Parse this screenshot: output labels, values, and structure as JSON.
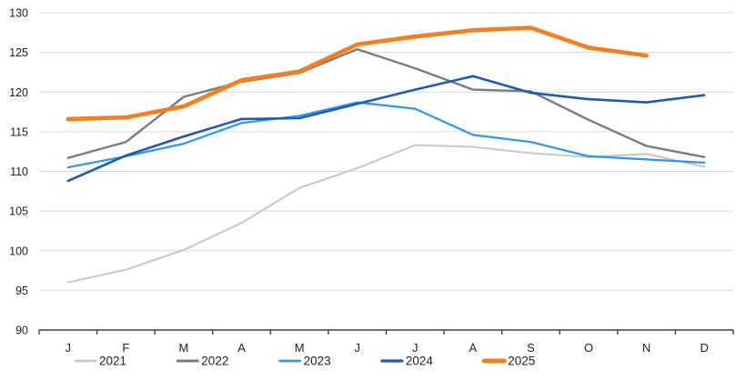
{
  "chart_data": {
    "type": "line",
    "title": "",
    "xlabel": "",
    "ylabel": "",
    "x_categories": [
      "J",
      "F",
      "M",
      "A",
      "M",
      "J",
      "J",
      "A",
      "S",
      "O",
      "N",
      "D"
    ],
    "y_ticks": [
      90,
      95,
      100,
      105,
      110,
      115,
      120,
      125,
      130
    ],
    "ylim": [
      90,
      130
    ],
    "grid": "horizontal-only",
    "legend_position": "bottom",
    "background_color": "#ffffff",
    "gridline_color": "#d9d9d9",
    "axis_line_color": "#404040",
    "series": [
      {
        "name": "2021",
        "color": "#c9c9c9",
        "stroke_width": 2.1,
        "values": [
          96.0,
          97.6,
          100.1,
          103.5,
          107.9,
          110.4,
          113.3,
          113.1,
          112.3,
          111.8,
          112.2,
          110.6
        ]
      },
      {
        "name": "2022",
        "color": "#7c7c7c",
        "stroke_width": 2.4,
        "values": [
          111.7,
          113.7,
          119.4,
          121.3,
          122.4,
          125.4,
          123.0,
          120.3,
          120.1,
          116.5,
          113.2,
          111.8
        ]
      },
      {
        "name": "2023",
        "color": "#2e96f0",
        "stroke_width": 2.2,
        "values": [
          110.5,
          111.9,
          113.5,
          116.1,
          117.0,
          118.7,
          117.9,
          114.6,
          113.7,
          111.9,
          111.5,
          111.1
        ]
      },
      {
        "name": "2024",
        "color": "#1e5cb3",
        "stroke_width": 2.6,
        "values": [
          108.8,
          112.0,
          114.4,
          116.6,
          116.7,
          118.5,
          120.3,
          122.0,
          119.9,
          119.1,
          118.7,
          119.6
        ]
      },
      {
        "name": "2025",
        "color": "#f57e1e",
        "stroke_width": 4.6,
        "values": [
          116.6,
          116.8,
          118.2,
          121.5,
          122.6,
          126.0,
          127.0,
          127.8,
          128.1,
          125.6,
          124.6,
          null
        ]
      }
    ]
  }
}
